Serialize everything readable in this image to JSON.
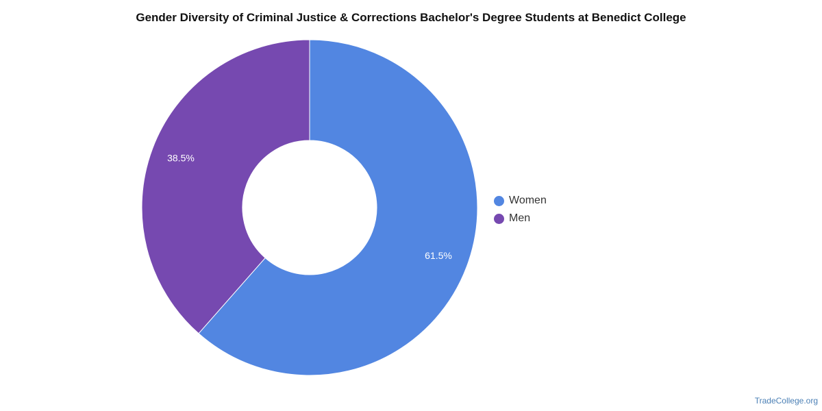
{
  "chart_data": {
    "type": "pie",
    "title": "Gender Diversity of Criminal Justice & Corrections Bachelor's Degree Students at Benedict College",
    "categories": [
      "Women",
      "Men"
    ],
    "values": [
      61.5,
      38.5
    ],
    "value_labels": [
      "61.5%",
      "38.5%"
    ],
    "colors": [
      "#5286e1",
      "#7649b0"
    ],
    "donut": true,
    "legend_position": "right"
  },
  "source": "TradeCollege.org"
}
